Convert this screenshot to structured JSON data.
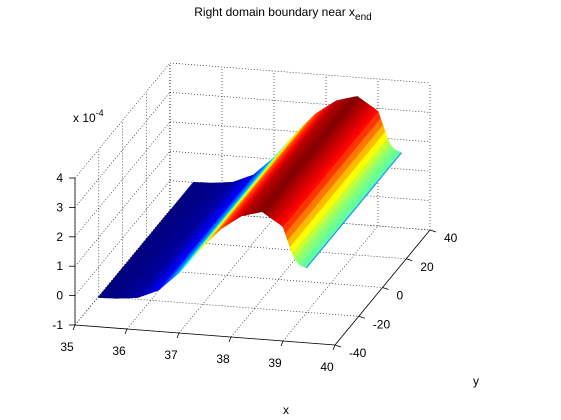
{
  "chart_data": {
    "type": "surface",
    "title": {
      "main": "Right domain boundary near x",
      "sub": "end"
    },
    "xlabel": "x",
    "ylabel": "y",
    "zlabel": "",
    "z_multiplier": {
      "base": "x 10",
      "exponent": "-4"
    },
    "xlim": [
      35,
      40
    ],
    "ylim": [
      -40,
      40
    ],
    "zlim": [
      -1,
      4
    ],
    "x_ticks": [
      "35",
      "36",
      "37",
      "38",
      "39",
      "40"
    ],
    "y_ticks": [
      "-40",
      "-20",
      "0",
      "20",
      "40"
    ],
    "z_ticks": [
      "-1",
      "0",
      "1",
      "2",
      "3",
      "4"
    ],
    "grid": true,
    "colormap": "jet",
    "x_domain": [
      35.45,
      39.45
    ],
    "y_domain": [
      -40,
      40
    ],
    "profile": {
      "description_units": "value in units of 1e-4 along x; constant along y",
      "x": [
        35.45,
        35.8,
        36.2,
        36.6,
        37.0,
        37.4,
        37.8,
        38.2,
        38.6,
        39.0,
        39.1,
        39.2,
        39.3,
        39.45
      ],
      "z": [
        0.0,
        0.02,
        0.1,
        0.4,
        1.05,
        1.9,
        2.65,
        3.15,
        3.35,
        2.9,
        2.4,
        1.9,
        1.65,
        1.55
      ]
    },
    "peak": {
      "x": 38.6,
      "z": 3.35
    }
  }
}
